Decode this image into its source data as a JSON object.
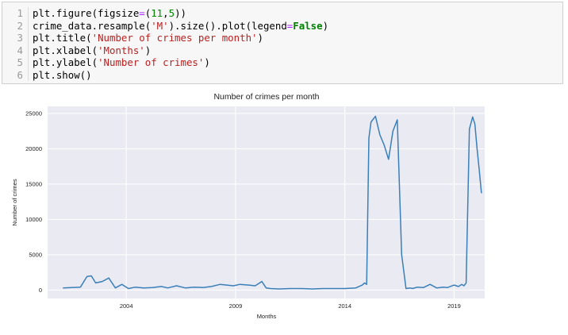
{
  "code_cell": {
    "lines": [
      {
        "num": "1",
        "tokens": [
          {
            "t": "plt.figure(figsize"
          },
          {
            "t": "=",
            "c": "op"
          },
          {
            "t": "("
          },
          {
            "t": "11",
            "c": "num"
          },
          {
            "t": ","
          },
          {
            "t": "5",
            "c": "num"
          },
          {
            "t": "))"
          }
        ]
      },
      {
        "num": "2",
        "tokens": [
          {
            "t": "crime_data.resample("
          },
          {
            "t": "'M'",
            "c": "str"
          },
          {
            "t": ").size().plot(legend"
          },
          {
            "t": "=",
            "c": "op"
          },
          {
            "t": "False",
            "c": "kw"
          },
          {
            "t": ")"
          }
        ]
      },
      {
        "num": "3",
        "tokens": [
          {
            "t": "plt.title("
          },
          {
            "t": "'Number of crimes per month'",
            "c": "str"
          },
          {
            "t": ")"
          }
        ]
      },
      {
        "num": "4",
        "tokens": [
          {
            "t": "plt.xlabel("
          },
          {
            "t": "'Months'",
            "c": "str"
          },
          {
            "t": ")"
          }
        ]
      },
      {
        "num": "5",
        "tokens": [
          {
            "t": "plt.ylabel("
          },
          {
            "t": "'Number of crimes'",
            "c": "str"
          },
          {
            "t": ")"
          }
        ]
      },
      {
        "num": "6",
        "tokens": [
          {
            "t": "plt.show()"
          }
        ]
      }
    ]
  },
  "chart_data": {
    "type": "line",
    "title": "Number of crimes per month",
    "xlabel": "Months",
    "ylabel": "Number of crimes",
    "xlim": [
      2000.4,
      2020.4
    ],
    "ylim": [
      -1200,
      26000
    ],
    "xticks": [
      {
        "value": 2004,
        "label": "2004"
      },
      {
        "value": 2009,
        "label": "2009"
      },
      {
        "value": 2014,
        "label": "2014"
      },
      {
        "value": 2019,
        "label": "2019"
      }
    ],
    "yticks": [
      {
        "value": 0,
        "label": "0"
      },
      {
        "value": 5000,
        "label": "5000"
      },
      {
        "value": 10000,
        "label": "10000"
      },
      {
        "value": 15000,
        "label": "15000"
      },
      {
        "value": 20000,
        "label": "20000"
      },
      {
        "value": 25000,
        "label": "25000"
      }
    ],
    "grid": true,
    "legend": false,
    "line_color": "#3a7fb8",
    "background_color": "#eaeaf2",
    "series": [
      {
        "x": [
          2001.1,
          2001.5,
          2001.9,
          2002.2,
          2002.4,
          2002.6,
          2002.9,
          2003.2,
          2003.5,
          2003.8,
          2004.1,
          2004.4,
          2004.8,
          2005.2,
          2005.6,
          2005.9,
          2006.3,
          2006.7,
          2007.1,
          2007.5,
          2007.9,
          2008.3,
          2008.6,
          2008.9,
          2009.2,
          2009.6,
          2009.9,
          2010.2,
          2010.4,
          2010.6,
          2011.0,
          2011.5,
          2012.0,
          2012.5,
          2013.0,
          2013.5,
          2014.0,
          2014.5,
          2014.8,
          2014.9,
          2015.0,
          2015.1,
          2015.2,
          2015.4,
          2015.6,
          2015.8,
          2016.0,
          2016.2,
          2016.4,
          2016.6,
          2016.8,
          2016.9,
          2017.0,
          2017.1,
          2017.3,
          2017.6,
          2017.9,
          2018.2,
          2018.5,
          2018.7,
          2019.0,
          2019.2,
          2019.35,
          2019.45,
          2019.55,
          2019.7,
          2019.85,
          2019.95,
          2020.05,
          2020.15,
          2020.25
        ],
        "y": [
          300,
          350,
          400,
          1900,
          2000,
          1000,
          1200,
          1700,
          300,
          800,
          200,
          400,
          300,
          350,
          500,
          300,
          600,
          300,
          400,
          350,
          500,
          800,
          700,
          600,
          800,
          700,
          600,
          1200,
          300,
          200,
          150,
          200,
          200,
          150,
          200,
          200,
          200,
          300,
          700,
          1000,
          800,
          21500,
          23800,
          24600,
          22000,
          20500,
          18500,
          22500,
          24100,
          5000,
          200,
          250,
          300,
          200,
          400,
          350,
          800,
          300,
          400,
          350,
          700,
          500,
          800,
          600,
          1000,
          22800,
          24500,
          23500,
          20000,
          17000,
          13700
        ]
      }
    ]
  }
}
